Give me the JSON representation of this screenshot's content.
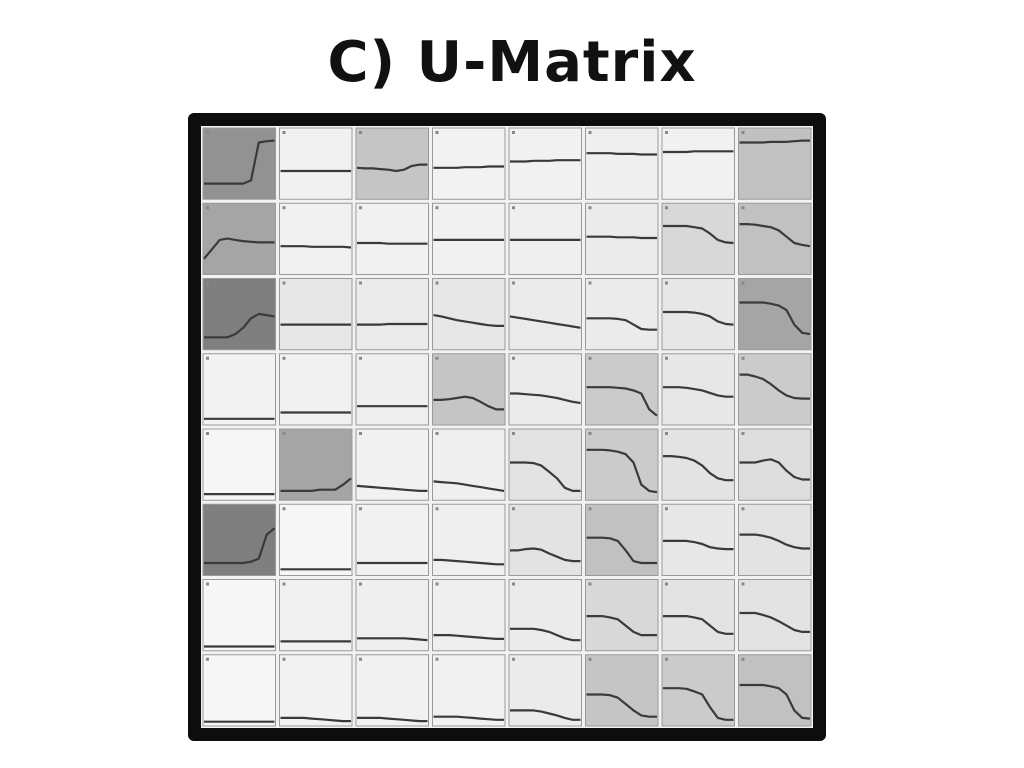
{
  "title": "C) U-Matrix",
  "grid": {
    "rows": 8,
    "cols": 8
  },
  "colors": {
    "frame": "#0d0d0d",
    "trace": "#3a3a3a",
    "cell_border": "#9a9a9a"
  },
  "cells": [
    [
      {
        "shade": 0.55,
        "trace": [
          0.2,
          0.2,
          0.2,
          0.2,
          0.2,
          0.2,
          0.25,
          0.85,
          0.87,
          0.88
        ]
      },
      {
        "shade": 0.05,
        "trace": [
          0.4,
          0.4,
          0.4,
          0.4,
          0.4,
          0.4,
          0.4,
          0.4,
          0.4,
          0.4
        ]
      },
      {
        "shade": 0.28,
        "trace": [
          0.45,
          0.44,
          0.44,
          0.43,
          0.42,
          0.4,
          0.42,
          0.48,
          0.5,
          0.5
        ]
      },
      {
        "shade": 0.04,
        "trace": [
          0.45,
          0.45,
          0.45,
          0.45,
          0.46,
          0.46,
          0.46,
          0.47,
          0.47,
          0.47
        ]
      },
      {
        "shade": 0.05,
        "trace": [
          0.55,
          0.55,
          0.55,
          0.56,
          0.56,
          0.56,
          0.57,
          0.57,
          0.57,
          0.57
        ]
      },
      {
        "shade": 0.06,
        "trace": [
          0.68,
          0.68,
          0.68,
          0.68,
          0.67,
          0.67,
          0.67,
          0.66,
          0.66,
          0.66
        ]
      },
      {
        "shade": 0.05,
        "trace": [
          0.7,
          0.7,
          0.7,
          0.7,
          0.71,
          0.71,
          0.71,
          0.71,
          0.71,
          0.71
        ]
      },
      {
        "shade": 0.3,
        "trace": [
          0.85,
          0.85,
          0.85,
          0.85,
          0.86,
          0.86,
          0.86,
          0.87,
          0.88,
          0.88
        ]
      }
    ],
    [
      {
        "shade": 0.45,
        "trace": [
          0.2,
          0.35,
          0.5,
          0.52,
          0.5,
          0.48,
          0.47,
          0.46,
          0.46,
          0.46
        ]
      },
      {
        "shade": 0.05,
        "trace": [
          0.4,
          0.4,
          0.4,
          0.4,
          0.39,
          0.39,
          0.39,
          0.39,
          0.39,
          0.38
        ]
      },
      {
        "shade": 0.05,
        "trace": [
          0.45,
          0.45,
          0.45,
          0.45,
          0.44,
          0.44,
          0.44,
          0.44,
          0.44,
          0.44
        ]
      },
      {
        "shade": 0.05,
        "trace": [
          0.5,
          0.5,
          0.5,
          0.5,
          0.5,
          0.5,
          0.5,
          0.5,
          0.5,
          0.5
        ]
      },
      {
        "shade": 0.06,
        "trace": [
          0.5,
          0.5,
          0.5,
          0.5,
          0.5,
          0.5,
          0.5,
          0.5,
          0.5,
          0.5
        ]
      },
      {
        "shade": 0.08,
        "trace": [
          0.55,
          0.55,
          0.55,
          0.55,
          0.54,
          0.54,
          0.54,
          0.53,
          0.53,
          0.53
        ]
      },
      {
        "shade": 0.18,
        "trace": [
          0.72,
          0.72,
          0.72,
          0.72,
          0.7,
          0.68,
          0.6,
          0.5,
          0.46,
          0.45
        ]
      },
      {
        "shade": 0.3,
        "trace": [
          0.75,
          0.75,
          0.74,
          0.72,
          0.7,
          0.65,
          0.55,
          0.45,
          0.42,
          0.4
        ]
      }
    ],
    [
      {
        "shade": 0.65,
        "trace": [
          0.15,
          0.15,
          0.15,
          0.15,
          0.2,
          0.3,
          0.45,
          0.52,
          0.5,
          0.48
        ]
      },
      {
        "shade": 0.1,
        "trace": [
          0.35,
          0.35,
          0.35,
          0.35,
          0.35,
          0.35,
          0.35,
          0.35,
          0.35,
          0.35
        ]
      },
      {
        "shade": 0.08,
        "trace": [
          0.35,
          0.35,
          0.35,
          0.35,
          0.36,
          0.36,
          0.36,
          0.36,
          0.36,
          0.36
        ]
      },
      {
        "shade": 0.1,
        "trace": [
          0.5,
          0.48,
          0.45,
          0.42,
          0.4,
          0.38,
          0.36,
          0.34,
          0.33,
          0.33
        ]
      },
      {
        "shade": 0.08,
        "trace": [
          0.48,
          0.46,
          0.44,
          0.42,
          0.4,
          0.38,
          0.36,
          0.34,
          0.32,
          0.3
        ]
      },
      {
        "shade": 0.08,
        "trace": [
          0.45,
          0.45,
          0.45,
          0.45,
          0.44,
          0.42,
          0.35,
          0.28,
          0.27,
          0.27
        ]
      },
      {
        "shade": 0.1,
        "trace": [
          0.55,
          0.55,
          0.55,
          0.55,
          0.54,
          0.52,
          0.48,
          0.4,
          0.36,
          0.35
        ]
      },
      {
        "shade": 0.45,
        "trace": [
          0.7,
          0.7,
          0.7,
          0.7,
          0.68,
          0.65,
          0.58,
          0.35,
          0.22,
          0.2
        ]
      }
    ],
    [
      {
        "shade": 0.04,
        "trace": [
          0.05,
          0.05,
          0.05,
          0.05,
          0.05,
          0.05,
          0.05,
          0.05,
          0.05,
          0.05
        ]
      },
      {
        "shade": 0.05,
        "trace": [
          0.15,
          0.15,
          0.15,
          0.15,
          0.15,
          0.15,
          0.15,
          0.15,
          0.15,
          0.15
        ]
      },
      {
        "shade": 0.06,
        "trace": [
          0.25,
          0.25,
          0.25,
          0.25,
          0.25,
          0.25,
          0.25,
          0.25,
          0.25,
          0.25
        ]
      },
      {
        "shade": 0.28,
        "trace": [
          0.35,
          0.35,
          0.36,
          0.38,
          0.4,
          0.38,
          0.32,
          0.25,
          0.2,
          0.2
        ]
      },
      {
        "shade": 0.08,
        "trace": [
          0.45,
          0.45,
          0.44,
          0.43,
          0.42,
          0.4,
          0.38,
          0.35,
          0.32,
          0.3
        ]
      },
      {
        "shade": 0.25,
        "trace": [
          0.55,
          0.55,
          0.55,
          0.55,
          0.54,
          0.53,
          0.5,
          0.45,
          0.2,
          0.1
        ]
      },
      {
        "shade": 0.1,
        "trace": [
          0.55,
          0.55,
          0.55,
          0.54,
          0.52,
          0.5,
          0.46,
          0.42,
          0.4,
          0.4
        ]
      },
      {
        "shade": 0.25,
        "trace": [
          0.75,
          0.75,
          0.72,
          0.68,
          0.6,
          0.5,
          0.42,
          0.38,
          0.37,
          0.37
        ]
      }
    ],
    [
      {
        "shade": 0.02,
        "trace": [
          0.05,
          0.05,
          0.05,
          0.05,
          0.05,
          0.05,
          0.05,
          0.05,
          0.05,
          0.05
        ]
      },
      {
        "shade": 0.45,
        "trace": [
          0.1,
          0.1,
          0.1,
          0.1,
          0.1,
          0.12,
          0.12,
          0.12,
          0.2,
          0.3
        ]
      },
      {
        "shade": 0.05,
        "trace": [
          0.18,
          0.17,
          0.16,
          0.15,
          0.14,
          0.13,
          0.12,
          0.11,
          0.1,
          0.1
        ]
      },
      {
        "shade": 0.06,
        "trace": [
          0.25,
          0.24,
          0.23,
          0.22,
          0.2,
          0.18,
          0.16,
          0.14,
          0.12,
          0.1
        ]
      },
      {
        "shade": 0.12,
        "trace": [
          0.55,
          0.55,
          0.55,
          0.54,
          0.5,
          0.4,
          0.3,
          0.15,
          0.1,
          0.1
        ]
      },
      {
        "shade": 0.25,
        "trace": [
          0.75,
          0.75,
          0.75,
          0.74,
          0.72,
          0.68,
          0.55,
          0.2,
          0.1,
          0.08
        ]
      },
      {
        "shade": 0.12,
        "trace": [
          0.65,
          0.65,
          0.64,
          0.62,
          0.58,
          0.5,
          0.38,
          0.3,
          0.27,
          0.27
        ]
      },
      {
        "shade": 0.15,
        "trace": [
          0.55,
          0.55,
          0.55,
          0.58,
          0.6,
          0.55,
          0.42,
          0.32,
          0.28,
          0.28
        ]
      }
    ],
    [
      {
        "shade": 0.65,
        "trace": [
          0.15,
          0.15,
          0.15,
          0.15,
          0.15,
          0.15,
          0.17,
          0.22,
          0.6,
          0.7
        ]
      },
      {
        "shade": 0.02,
        "trace": [
          0.05,
          0.05,
          0.05,
          0.05,
          0.05,
          0.05,
          0.05,
          0.05,
          0.05,
          0.05
        ]
      },
      {
        "shade": 0.05,
        "trace": [
          0.15,
          0.15,
          0.15,
          0.15,
          0.15,
          0.15,
          0.15,
          0.15,
          0.15,
          0.15
        ]
      },
      {
        "shade": 0.06,
        "trace": [
          0.2,
          0.2,
          0.19,
          0.18,
          0.17,
          0.16,
          0.15,
          0.14,
          0.13,
          0.13
        ]
      },
      {
        "shade": 0.12,
        "trace": [
          0.35,
          0.35,
          0.37,
          0.38,
          0.36,
          0.3,
          0.25,
          0.2,
          0.18,
          0.18
        ]
      },
      {
        "shade": 0.3,
        "trace": [
          0.55,
          0.55,
          0.55,
          0.54,
          0.5,
          0.35,
          0.18,
          0.15,
          0.15,
          0.15
        ]
      },
      {
        "shade": 0.1,
        "trace": [
          0.5,
          0.5,
          0.5,
          0.5,
          0.48,
          0.45,
          0.4,
          0.38,
          0.37,
          0.37
        ]
      },
      {
        "shade": 0.12,
        "trace": [
          0.6,
          0.6,
          0.6,
          0.58,
          0.55,
          0.5,
          0.44,
          0.4,
          0.38,
          0.38
        ]
      }
    ],
    [
      {
        "shade": 0.02,
        "trace": [
          0.02,
          0.02,
          0.02,
          0.02,
          0.02,
          0.02,
          0.02,
          0.02,
          0.02,
          0.02
        ]
      },
      {
        "shade": 0.05,
        "trace": [
          0.1,
          0.1,
          0.1,
          0.1,
          0.1,
          0.1,
          0.1,
          0.1,
          0.1,
          0.1
        ]
      },
      {
        "shade": 0.06,
        "trace": [
          0.15,
          0.15,
          0.15,
          0.15,
          0.15,
          0.15,
          0.15,
          0.14,
          0.13,
          0.12
        ]
      },
      {
        "shade": 0.06,
        "trace": [
          0.2,
          0.2,
          0.2,
          0.19,
          0.18,
          0.17,
          0.16,
          0.15,
          0.14,
          0.14
        ]
      },
      {
        "shade": 0.08,
        "trace": [
          0.3,
          0.3,
          0.3,
          0.3,
          0.28,
          0.25,
          0.2,
          0.15,
          0.12,
          0.12
        ]
      },
      {
        "shade": 0.18,
        "trace": [
          0.5,
          0.5,
          0.5,
          0.48,
          0.45,
          0.35,
          0.25,
          0.2,
          0.2,
          0.2
        ]
      },
      {
        "shade": 0.12,
        "trace": [
          0.5,
          0.5,
          0.5,
          0.5,
          0.48,
          0.45,
          0.35,
          0.25,
          0.22,
          0.22
        ]
      },
      {
        "shade": 0.12,
        "trace": [
          0.55,
          0.55,
          0.55,
          0.52,
          0.48,
          0.42,
          0.35,
          0.28,
          0.25,
          0.25
        ]
      }
    ],
    [
      {
        "shade": 0.02,
        "trace": [
          0.02,
          0.02,
          0.02,
          0.02,
          0.02,
          0.02,
          0.02,
          0.02,
          0.02,
          0.02
        ]
      },
      {
        "shade": 0.04,
        "trace": [
          0.08,
          0.08,
          0.08,
          0.08,
          0.07,
          0.06,
          0.05,
          0.04,
          0.03,
          0.03
        ]
      },
      {
        "shade": 0.05,
        "trace": [
          0.08,
          0.08,
          0.08,
          0.08,
          0.07,
          0.06,
          0.05,
          0.04,
          0.03,
          0.03
        ]
      },
      {
        "shade": 0.05,
        "trace": [
          0.1,
          0.1,
          0.1,
          0.1,
          0.09,
          0.08,
          0.07,
          0.06,
          0.05,
          0.05
        ]
      },
      {
        "shade": 0.08,
        "trace": [
          0.2,
          0.2,
          0.2,
          0.2,
          0.18,
          0.15,
          0.12,
          0.08,
          0.05,
          0.05
        ]
      },
      {
        "shade": 0.28,
        "trace": [
          0.45,
          0.45,
          0.45,
          0.44,
          0.4,
          0.3,
          0.2,
          0.12,
          0.1,
          0.1
        ]
      },
      {
        "shade": 0.25,
        "trace": [
          0.55,
          0.55,
          0.55,
          0.54,
          0.5,
          0.45,
          0.25,
          0.08,
          0.05,
          0.05
        ]
      },
      {
        "shade": 0.3,
        "trace": [
          0.6,
          0.6,
          0.6,
          0.6,
          0.58,
          0.55,
          0.45,
          0.2,
          0.08,
          0.07
        ]
      }
    ]
  ]
}
